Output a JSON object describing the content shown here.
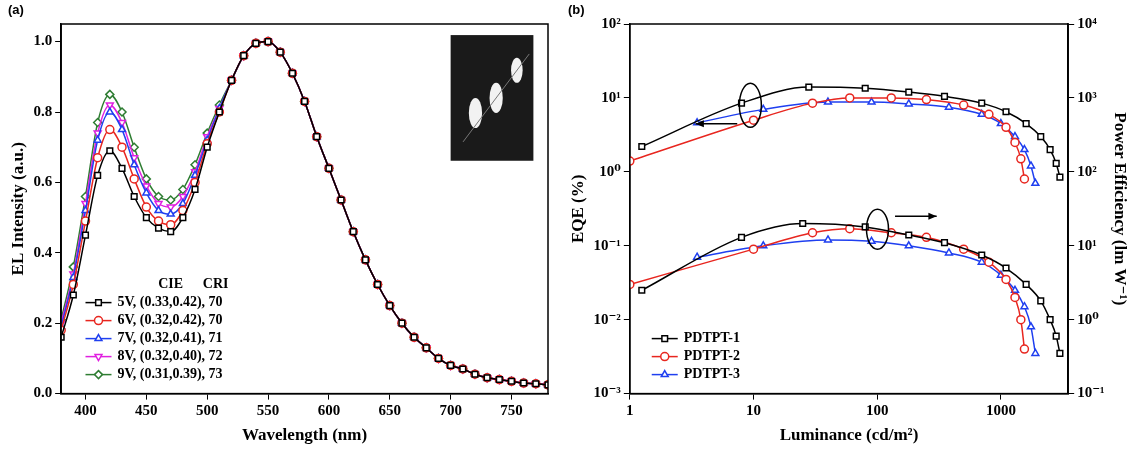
{
  "chart_data": [
    {
      "panel_label": "(a)",
      "type": "line",
      "x_label": "Wavelength (nm)",
      "y_label": "EL Intensity (a.u.)",
      "x": [
        380,
        390,
        400,
        410,
        420,
        430,
        440,
        450,
        460,
        470,
        480,
        490,
        500,
        510,
        520,
        530,
        540,
        550,
        560,
        570,
        580,
        590,
        600,
        610,
        620,
        630,
        640,
        650,
        660,
        670,
        680,
        690,
        700,
        710,
        720,
        730,
        740,
        750,
        760,
        770,
        780
      ],
      "xlim": [
        380,
        780
      ],
      "xticks": [
        400,
        450,
        500,
        550,
        600,
        650,
        700,
        750
      ],
      "ylim": [
        0,
        1.05
      ],
      "yticks": [
        {
          "value": 0,
          "label": "0.0"
        },
        0.2,
        0.4,
        0.6,
        0.8,
        {
          "value": 1,
          "label": "1.0"
        }
      ],
      "grid": false,
      "legend": "bottom-left",
      "annotations": [
        "CIE",
        "CRI"
      ],
      "series": [
        {
          "name": "5V, (0.33,0.42), 70",
          "color": "#000000",
          "marker": "square",
          "values": [
            0.16,
            0.28,
            0.45,
            0.62,
            0.69,
            0.64,
            0.56,
            0.5,
            0.47,
            0.46,
            0.5,
            0.58,
            0.7,
            0.8,
            0.89,
            0.96,
            0.995,
            1.0,
            0.97,
            0.91,
            0.83,
            0.73,
            0.64,
            0.55,
            0.46,
            0.38,
            0.31,
            0.25,
            0.2,
            0.16,
            0.13,
            0.1,
            0.08,
            0.07,
            0.055,
            0.045,
            0.04,
            0.035,
            0.03,
            0.028,
            0.025
          ]
        },
        {
          "name": "6V, (0.32,0.42), 70",
          "color": "#e8261f",
          "marker": "circle",
          "values": [
            0.18,
            0.31,
            0.49,
            0.67,
            0.75,
            0.7,
            0.61,
            0.53,
            0.49,
            0.48,
            0.52,
            0.6,
            0.71,
            0.8,
            0.89,
            0.96,
            0.995,
            1.0,
            0.97,
            0.91,
            0.83,
            0.73,
            0.64,
            0.55,
            0.46,
            0.38,
            0.31,
            0.25,
            0.2,
            0.16,
            0.13,
            0.1,
            0.08,
            0.07,
            0.055,
            0.045,
            0.04,
            0.035,
            0.03,
            0.028,
            0.025
          ]
        },
        {
          "name": "7V, (0.32,0.41), 71",
          "color": "#1f3ff0",
          "marker": "triangle",
          "values": [
            0.19,
            0.33,
            0.52,
            0.72,
            0.8,
            0.75,
            0.65,
            0.57,
            0.52,
            0.51,
            0.54,
            0.62,
            0.72,
            0.81,
            0.89,
            0.96,
            0.995,
            1.0,
            0.97,
            0.91,
            0.83,
            0.73,
            0.64,
            0.55,
            0.46,
            0.38,
            0.31,
            0.25,
            0.2,
            0.16,
            0.13,
            0.1,
            0.08,
            0.07,
            0.055,
            0.045,
            0.04,
            0.035,
            0.03,
            0.028,
            0.025
          ]
        },
        {
          "name": "8V, (0.32,0.40), 72",
          "color": "#e020e0",
          "marker": "triangle-down",
          "values": [
            0.2,
            0.34,
            0.54,
            0.74,
            0.82,
            0.77,
            0.67,
            0.59,
            0.54,
            0.53,
            0.56,
            0.63,
            0.73,
            0.81,
            0.89,
            0.96,
            0.995,
            1.0,
            0.97,
            0.91,
            0.83,
            0.73,
            0.64,
            0.55,
            0.46,
            0.38,
            0.31,
            0.25,
            0.2,
            0.16,
            0.13,
            0.1,
            0.08,
            0.07,
            0.055,
            0.045,
            0.04,
            0.035,
            0.03,
            0.028,
            0.025
          ]
        },
        {
          "name": "9V, (0.31,0.39), 73",
          "color": "#2e7d32",
          "marker": "diamond",
          "values": [
            0.21,
            0.36,
            0.56,
            0.77,
            0.85,
            0.8,
            0.7,
            0.61,
            0.56,
            0.55,
            0.58,
            0.65,
            0.74,
            0.82,
            0.89,
            0.96,
            0.995,
            1.0,
            0.97,
            0.91,
            0.83,
            0.73,
            0.64,
            0.55,
            0.46,
            0.38,
            0.31,
            0.25,
            0.2,
            0.16,
            0.13,
            0.1,
            0.08,
            0.07,
            0.055,
            0.045,
            0.04,
            0.035,
            0.03,
            0.028,
            0.025
          ]
        }
      ]
    },
    {
      "panel_label": "(b)",
      "type": "line",
      "log": true,
      "x_label": "Luminance (cd/m²)",
      "y_label": "EQE (%)",
      "y2_label": "Power Efficiency (lm W⁻¹)",
      "xlim": [
        1,
        3500
      ],
      "xticks": [
        1,
        10,
        100,
        1000
      ],
      "ylim": [
        0.001,
        100
      ],
      "yticks": [
        {
          "value": 0.001,
          "label": "10⁻³"
        },
        {
          "value": 0.01,
          "label": "10⁻²"
        },
        {
          "value": 0.1,
          "label": "10⁻¹"
        },
        {
          "value": 1,
          "label": "10⁰"
        },
        {
          "value": 10,
          "label": "10¹"
        },
        {
          "value": 100,
          "label": "10²"
        }
      ],
      "y2lim": [
        0.1,
        10000
      ],
      "y2ticks": [
        {
          "value": 0.1,
          "label": "10⁻¹"
        },
        {
          "value": 1,
          "label": "10⁰"
        },
        {
          "value": 10,
          "label": "10¹"
        },
        {
          "value": 100,
          "label": "10²"
        },
        {
          "value": 1000,
          "label": "10³"
        },
        {
          "value": 10000,
          "label": "10⁴"
        }
      ],
      "grid": false,
      "legend": "bottom-left",
      "series": [
        {
          "name": "PDTPT-1",
          "color": "#000000",
          "marker": "square",
          "x": [
            1.25,
            8,
            28,
            80,
            180,
            350,
            700,
            1100,
            1600,
            2100,
            2500,
            2800,
            3000
          ],
          "values": [
            2.2,
            8.5,
            14,
            13.5,
            12,
            10.5,
            8.5,
            6.5,
            4.5,
            3,
            2,
            1.3,
            0.85
          ]
        },
        {
          "name": "PDTPT-2",
          "color": "#e8261f",
          "marker": "circle",
          "x": [
            1,
            10,
            30,
            60,
            130,
            250,
            500,
            800,
            1100,
            1300,
            1450,
            1550
          ],
          "values": [
            1.4,
            5,
            8.5,
            10,
            10,
            9.5,
            8,
            6,
            4,
            2.5,
            1.5,
            0.8
          ]
        },
        {
          "name": "PDTPT-3",
          "color": "#1f3ff0",
          "marker": "triangle",
          "x": [
            3.5,
            12,
            40,
            90,
            180,
            380,
            700,
            1000,
            1300,
            1550,
            1750,
            1900
          ],
          "values": [
            4.6,
            7,
            8.8,
            8.8,
            8.3,
            7.5,
            6,
            4.5,
            3,
            2,
            1.2,
            0.7
          ]
        },
        {
          "name": "PDTPT-1",
          "color": "#000000",
          "marker": "square",
          "axis": "y2",
          "x": [
            1.25,
            8,
            25,
            80,
            180,
            350,
            700,
            1100,
            1600,
            2100,
            2500,
            2800,
            3000
          ],
          "values": [
            2.5,
            13,
            20,
            18,
            14,
            11,
            7.5,
            5,
            3,
            1.8,
            1,
            0.6,
            0.35
          ]
        },
        {
          "name": "PDTPT-2",
          "color": "#e8261f",
          "marker": "circle",
          "axis": "y2",
          "x": [
            1,
            10,
            30,
            60,
            130,
            250,
            500,
            800,
            1100,
            1300,
            1450,
            1550
          ],
          "values": [
            3,
            9,
            15,
            17,
            15,
            13,
            9,
            6,
            3.5,
            2,
            1,
            0.4
          ]
        },
        {
          "name": "PDTPT-3",
          "color": "#1f3ff0",
          "marker": "triangle",
          "axis": "y2",
          "x": [
            3.5,
            12,
            40,
            90,
            180,
            380,
            700,
            1000,
            1300,
            1550,
            1750,
            1900
          ],
          "values": [
            7,
            10,
            12,
            11.5,
            10,
            8,
            6,
            4,
            2.5,
            1.5,
            0.8,
            0.35
          ]
        }
      ]
    }
  ]
}
